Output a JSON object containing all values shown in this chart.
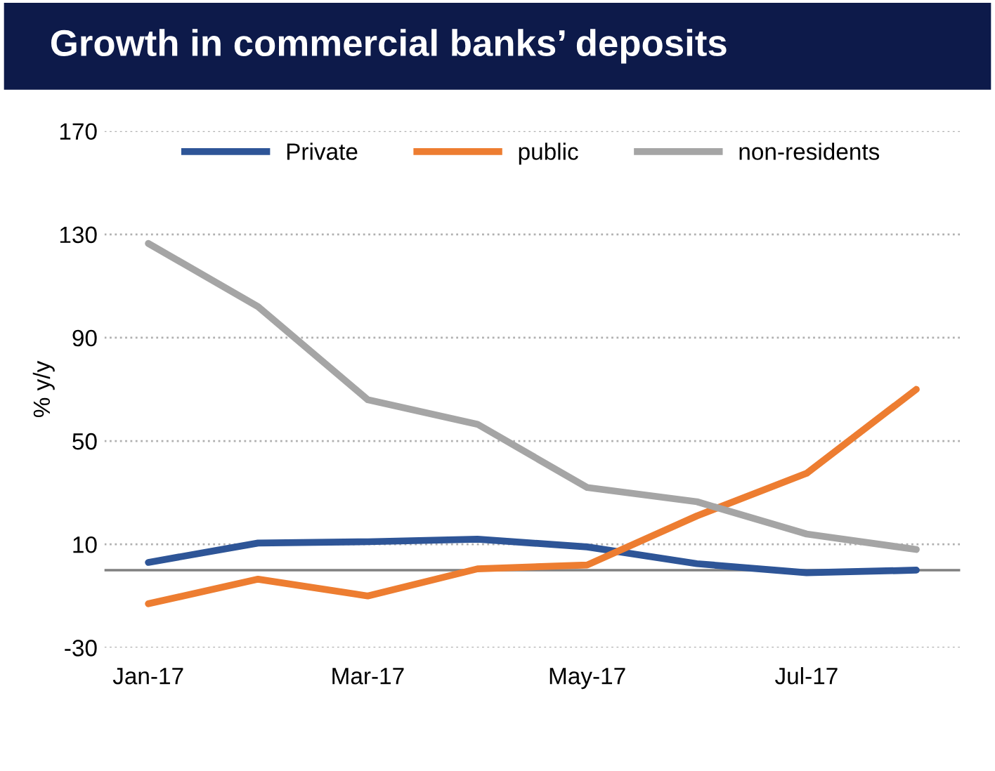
{
  "chart_data": {
    "type": "line",
    "title": "Growth in commercial banks’ deposits",
    "ylabel": "% y/y",
    "categories": [
      "Jan-17",
      null,
      "Mar-17",
      null,
      "May-17",
      null,
      "Jul-17",
      null
    ],
    "series": [
      {
        "name": "Private",
        "color": "#2e5597",
        "values": [
          3,
          10.5,
          11,
          12,
          9,
          2.5,
          -1,
          0
        ]
      },
      {
        "name": "public",
        "color": "#ed7d31",
        "values": [
          -13,
          -3.5,
          -10,
          0.5,
          2,
          21,
          37.5,
          70
        ]
      },
      {
        "name": "non-residents",
        "color": "#a5a5a5",
        "values": [
          126.5,
          102,
          66,
          56.5,
          32,
          26.5,
          14,
          8
        ]
      }
    ],
    "ylim": [
      -30,
      170
    ],
    "yticks": [
      -30,
      10,
      50,
      90,
      130,
      170
    ],
    "grid": "y",
    "legend": "top",
    "ref_lines": [
      {
        "axis": "y",
        "value": 0,
        "color": "#808080"
      }
    ],
    "marker": "none",
    "line_style": "solid"
  }
}
